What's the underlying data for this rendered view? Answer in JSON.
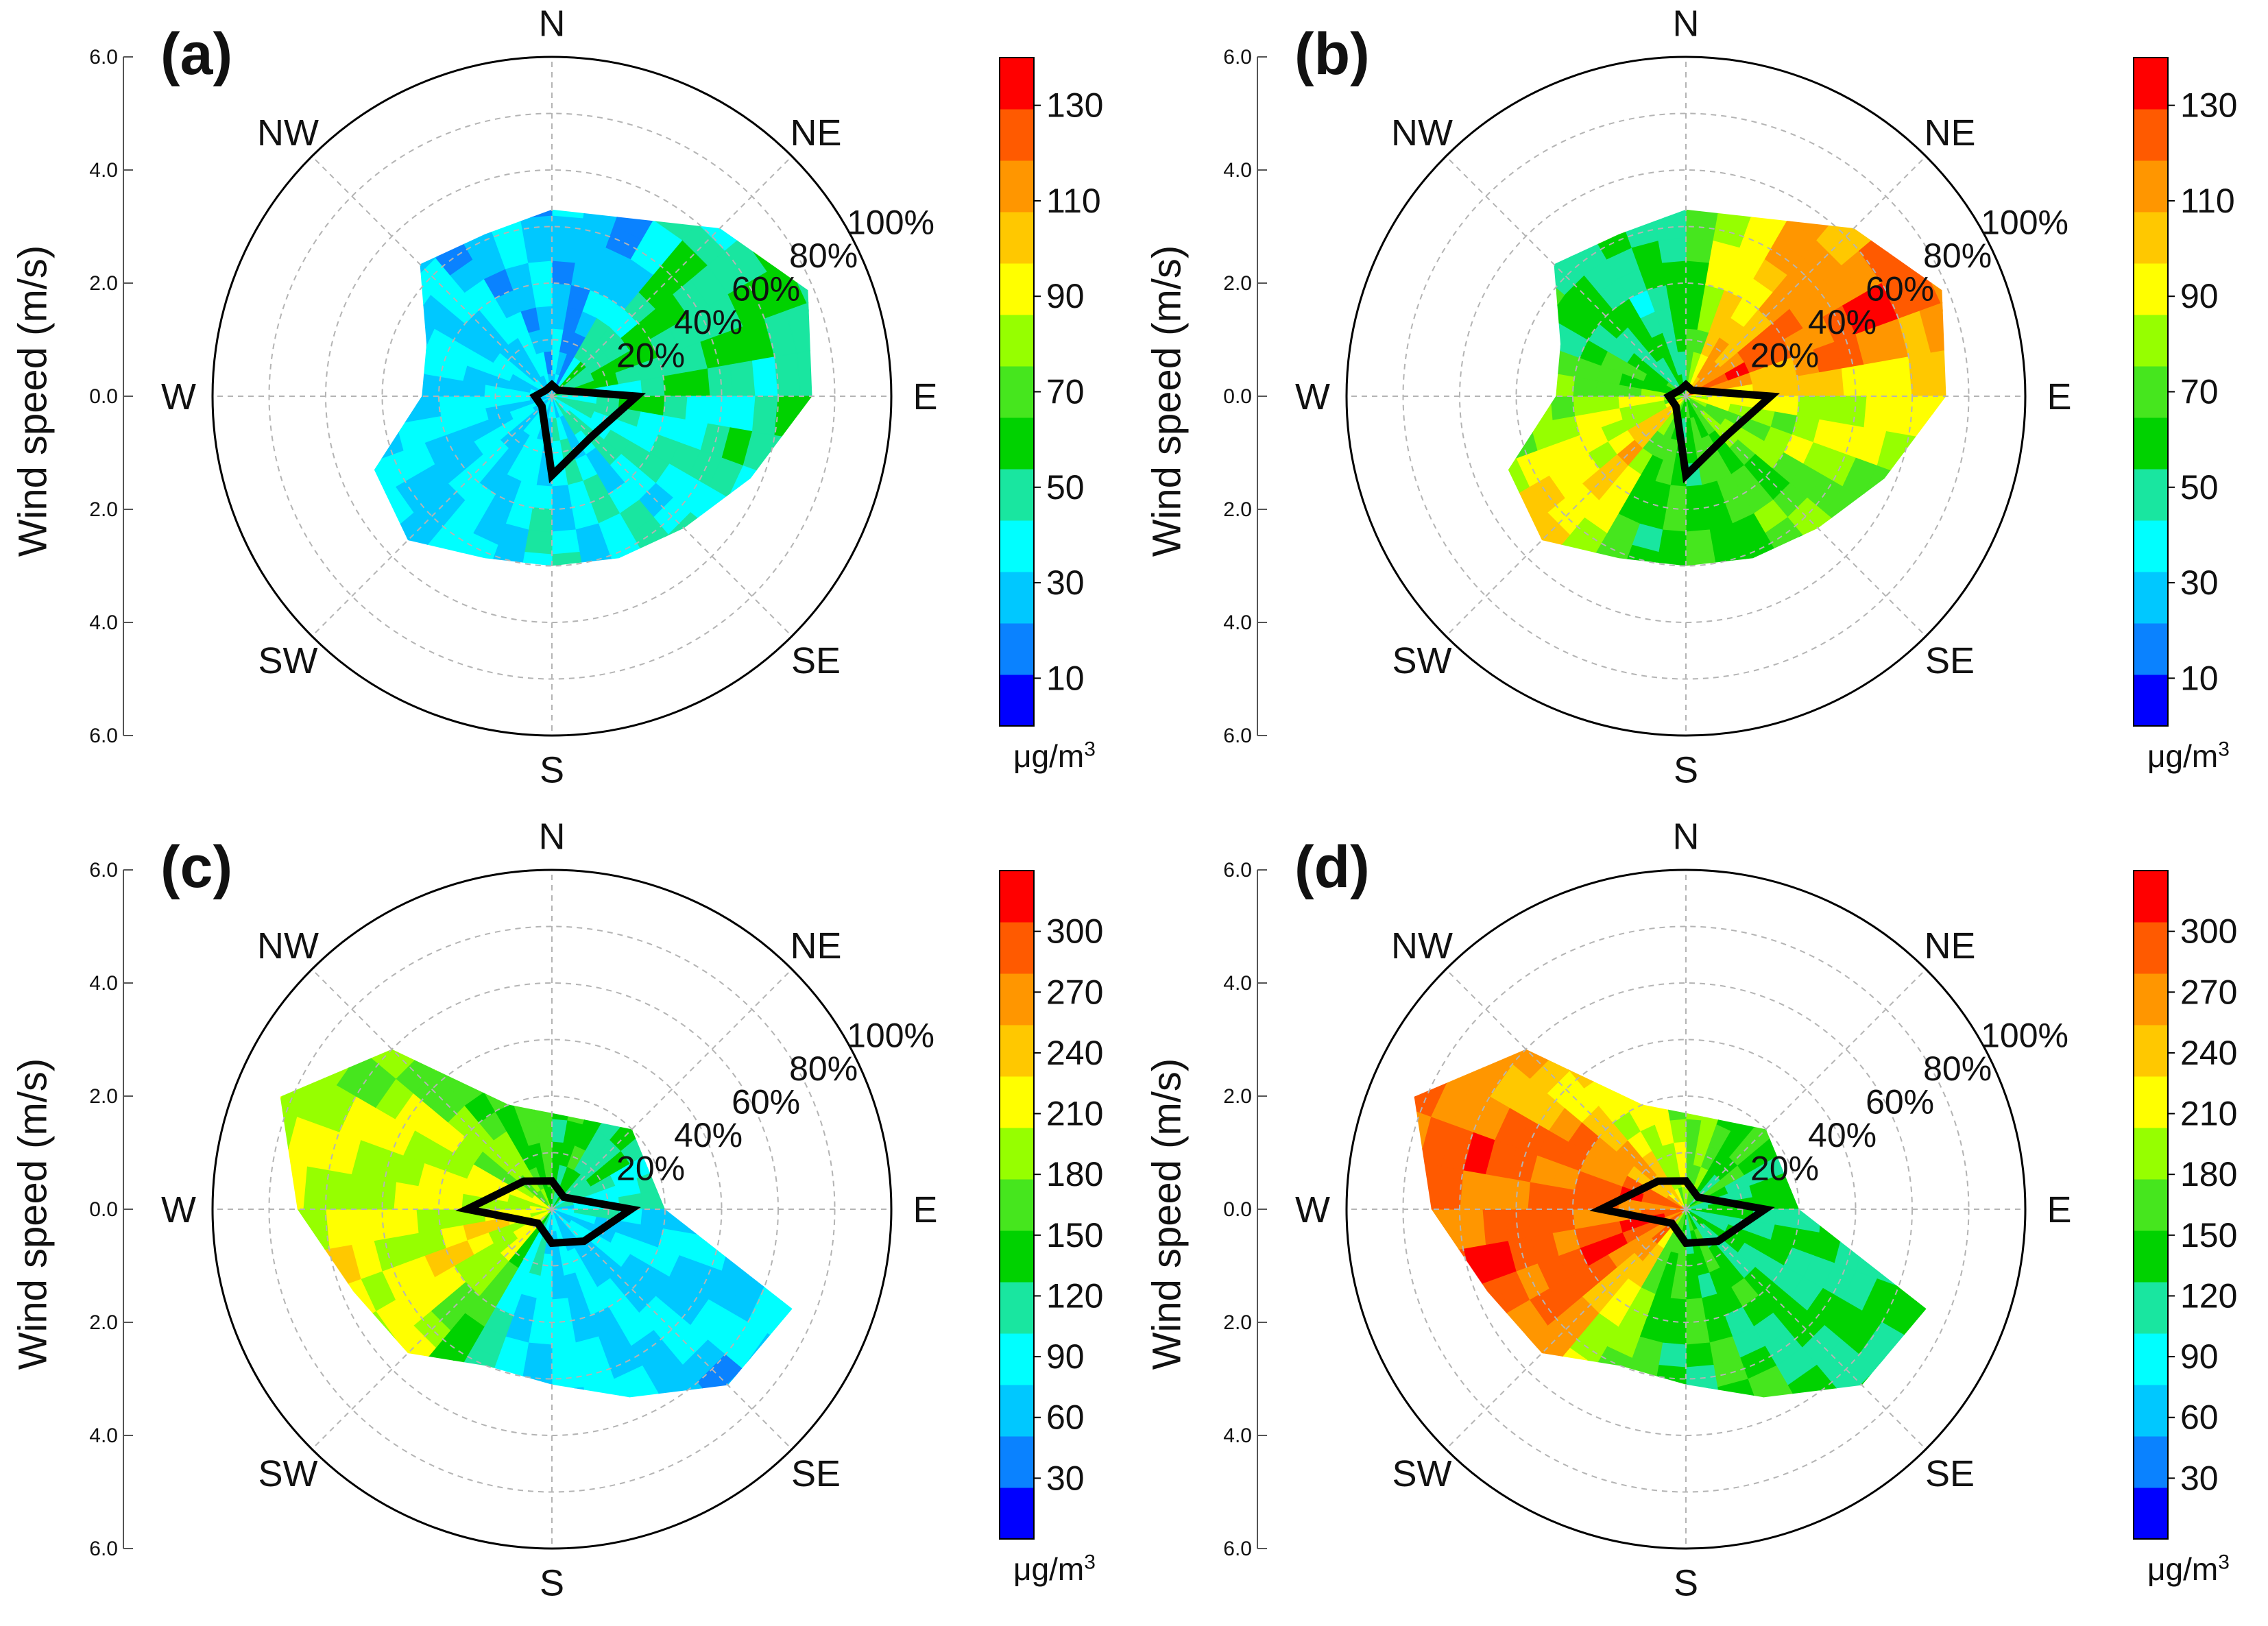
{
  "figure": {
    "panels": [
      {
        "label": "(a)",
        "ylabel": "Wind speed (m/s)",
        "unit_main": "μg/m",
        "unit_sup": "3"
      },
      {
        "label": "(b)",
        "ylabel": "Wind speed (m/s)",
        "unit_main": "μg/m",
        "unit_sup": "3"
      },
      {
        "label": "(c)",
        "ylabel": "Wind speed (m/s)",
        "unit_main": "μg/m",
        "unit_sup": "3"
      },
      {
        "label": "(d)",
        "ylabel": "Wind speed (m/s)",
        "unit_main": "μg/m",
        "unit_sup": "3"
      }
    ]
  },
  "colors": {
    "scale": [
      "#0000ff",
      "#0a82ff",
      "#00c8ff",
      "#00ffff",
      "#19e6a0",
      "#00d200",
      "#46e61e",
      "#96ff00",
      "#ffff00",
      "#ffc800",
      "#ff9600",
      "#ff5a00",
      "#ff0000"
    ],
    "ring": "#000000",
    "grid": "#b4b4b4",
    "frequency_line": "#000000"
  },
  "chart_data": [
    {
      "type": "polar-contour",
      "panel": "(a)",
      "directions": [
        "N",
        "NE",
        "E",
        "SE",
        "S",
        "SW",
        "W",
        "NW"
      ],
      "frequency_rings": [
        "20%",
        "40%",
        "60%",
        "80%",
        "100%"
      ],
      "ylabel": "Wind speed (m/s)",
      "yticks_top": [
        "6.0",
        "4.0",
        "2.0",
        "0.0"
      ],
      "yticks_bottom": [
        "2.0",
        "4.0",
        "6.0"
      ],
      "colorbar": {
        "ticks": [
          "10",
          "30",
          "50",
          "70",
          "90",
          "110",
          "130"
        ],
        "min": 0,
        "max": 140,
        "unit": "μg/m3"
      },
      "coverage_hull": [
        [
          0,
          3.3
        ],
        [
          45,
          4.2
        ],
        [
          67.5,
          4.9
        ],
        [
          90,
          4.6
        ],
        [
          112.5,
          3.8
        ],
        [
          135,
          3.3
        ],
        [
          157.5,
          3.1
        ],
        [
          180,
          3.0
        ],
        [
          202.5,
          3.1
        ],
        [
          225,
          3.6
        ],
        [
          247.5,
          3.4
        ],
        [
          270,
          2.3
        ],
        [
          292.5,
          2.4
        ],
        [
          315,
          3.3
        ],
        [
          337.5,
          3.1
        ]
      ],
      "frequency_polygon": [
        [
          0,
          0.2
        ],
        [
          45,
          0.15
        ],
        [
          90,
          1.5
        ],
        [
          135,
          1.0
        ],
        [
          180,
          1.4
        ],
        [
          225,
          0.25
        ],
        [
          270,
          0.3
        ],
        [
          315,
          0.15
        ]
      ],
      "concentration_field": [
        [
          0,
          30
        ],
        [
          22.5,
          22
        ],
        [
          45,
          50
        ],
        [
          67.5,
          55
        ],
        [
          90,
          48
        ],
        [
          112.5,
          45
        ],
        [
          135,
          40
        ],
        [
          157.5,
          38
        ],
        [
          180,
          36
        ],
        [
          202.5,
          35
        ],
        [
          225,
          33
        ],
        [
          247.5,
          32
        ],
        [
          270,
          34
        ],
        [
          292.5,
          35
        ],
        [
          315,
          30
        ],
        [
          337.5,
          28
        ]
      ]
    },
    {
      "type": "polar-contour",
      "panel": "(b)",
      "directions": [
        "N",
        "NE",
        "E",
        "SE",
        "S",
        "SW",
        "W",
        "NW"
      ],
      "frequency_rings": [
        "20%",
        "40%",
        "60%",
        "80%",
        "100%"
      ],
      "ylabel": "Wind speed (m/s)",
      "yticks_top": [
        "6.0",
        "4.0",
        "2.0",
        "0.0"
      ],
      "yticks_bottom": [
        "2.0",
        "4.0",
        "6.0"
      ],
      "colorbar": {
        "ticks": [
          "10",
          "30",
          "50",
          "70",
          "90",
          "110",
          "130"
        ],
        "min": 0,
        "max": 140,
        "unit": "μg/m3"
      },
      "coverage_hull": [
        [
          0,
          3.3
        ],
        [
          45,
          4.2
        ],
        [
          67.5,
          4.9
        ],
        [
          90,
          4.6
        ],
        [
          112.5,
          3.8
        ],
        [
          135,
          3.3
        ],
        [
          157.5,
          3.1
        ],
        [
          180,
          3.0
        ],
        [
          202.5,
          3.1
        ],
        [
          225,
          3.6
        ],
        [
          247.5,
          3.4
        ],
        [
          270,
          2.3
        ],
        [
          292.5,
          2.4
        ],
        [
          315,
          3.3
        ],
        [
          337.5,
          3.1
        ]
      ],
      "frequency_polygon": [
        [
          0,
          0.2
        ],
        [
          45,
          0.15
        ],
        [
          90,
          1.5
        ],
        [
          135,
          1.0
        ],
        [
          180,
          1.4
        ],
        [
          225,
          0.25
        ],
        [
          270,
          0.3
        ],
        [
          315,
          0.15
        ]
      ],
      "concentration_field": [
        [
          0,
          55
        ],
        [
          22.5,
          95
        ],
        [
          45,
          110
        ],
        [
          67.5,
          125
        ],
        [
          90,
          90
        ],
        [
          112.5,
          80
        ],
        [
          135,
          70
        ],
        [
          157.5,
          65
        ],
        [
          180,
          60
        ],
        [
          202.5,
          62
        ],
        [
          225,
          100
        ],
        [
          247.5,
          85
        ],
        [
          270,
          80
        ],
        [
          292.5,
          60
        ],
        [
          315,
          55
        ],
        [
          337.5,
          50
        ]
      ]
    },
    {
      "type": "polar-contour",
      "panel": "(c)",
      "directions": [
        "N",
        "NE",
        "E",
        "SE",
        "S",
        "SW",
        "W",
        "NW"
      ],
      "frequency_rings": [
        "20%",
        "40%",
        "60%",
        "80%",
        "100%"
      ],
      "ylabel": "Wind speed (m/s)",
      "yticks_top": [
        "6.0",
        "4.0",
        "2.0",
        "0.0"
      ],
      "yticks_bottom": [
        "2.0",
        "4.0",
        "6.0"
      ],
      "colorbar": {
        "ticks": [
          "30",
          "60",
          "90",
          "120",
          "150",
          "180",
          "210",
          "240",
          "270",
          "300"
        ],
        "min": 0,
        "max": 330,
        "unit": "μg/m3"
      },
      "coverage_hull": [
        [
          0,
          1.7
        ],
        [
          45,
          2.0
        ],
        [
          90,
          2.0
        ],
        [
          112.5,
          4.6
        ],
        [
          135,
          4.4
        ],
        [
          157.5,
          3.6
        ],
        [
          180,
          3.1
        ],
        [
          202.5,
          3.0
        ],
        [
          225,
          3.6
        ],
        [
          247.5,
          3.8
        ],
        [
          270,
          4.5
        ],
        [
          292.5,
          5.2
        ],
        [
          315,
          4.0
        ],
        [
          337.5,
          2.0
        ]
      ],
      "frequency_polygon": [
        [
          0,
          0.5
        ],
        [
          45,
          0.3
        ],
        [
          90,
          1.4
        ],
        [
          135,
          0.8
        ],
        [
          180,
          0.6
        ],
        [
          225,
          0.35
        ],
        [
          270,
          1.5
        ],
        [
          315,
          0.7
        ]
      ],
      "concentration_field": [
        [
          0,
          150
        ],
        [
          45,
          120
        ],
        [
          90,
          90
        ],
        [
          112.5,
          70
        ],
        [
          135,
          70
        ],
        [
          157.5,
          75
        ],
        [
          180,
          80
        ],
        [
          202.5,
          90
        ],
        [
          225,
          190
        ],
        [
          247.5,
          220
        ],
        [
          270,
          200
        ],
        [
          292.5,
          210
        ],
        [
          315,
          180
        ],
        [
          337.5,
          160
        ]
      ]
    },
    {
      "type": "polar-contour",
      "panel": "(d)",
      "directions": [
        "N",
        "NE",
        "E",
        "SE",
        "S",
        "SW",
        "W",
        "NW"
      ],
      "frequency_rings": [
        "20%",
        "40%",
        "60%",
        "80%",
        "100%"
      ],
      "ylabel": "Wind speed (m/s)",
      "yticks_top": [
        "6.0",
        "4.0",
        "2.0",
        "0.0"
      ],
      "yticks_bottom": [
        "2.0",
        "4.0",
        "6.0"
      ],
      "colorbar": {
        "ticks": [
          "30",
          "60",
          "90",
          "120",
          "150",
          "180",
          "210",
          "240",
          "270",
          "300"
        ],
        "min": 0,
        "max": 330,
        "unit": "μg/m3"
      },
      "coverage_hull": [
        [
          0,
          1.7
        ],
        [
          45,
          2.0
        ],
        [
          90,
          2.0
        ],
        [
          112.5,
          4.6
        ],
        [
          135,
          4.4
        ],
        [
          157.5,
          3.6
        ],
        [
          180,
          3.1
        ],
        [
          202.5,
          3.0
        ],
        [
          225,
          3.6
        ],
        [
          247.5,
          3.8
        ],
        [
          270,
          4.5
        ],
        [
          292.5,
          5.2
        ],
        [
          315,
          4.0
        ],
        [
          337.5,
          2.0
        ]
      ],
      "frequency_polygon": [
        [
          0,
          0.5
        ],
        [
          45,
          0.3
        ],
        [
          90,
          1.4
        ],
        [
          135,
          0.8
        ],
        [
          180,
          0.6
        ],
        [
          225,
          0.35
        ],
        [
          270,
          1.5
        ],
        [
          315,
          0.7
        ]
      ],
      "concentration_field": [
        [
          0,
          190
        ],
        [
          45,
          140
        ],
        [
          90,
          130
        ],
        [
          112.5,
          125
        ],
        [
          135,
          130
        ],
        [
          157.5,
          140
        ],
        [
          180,
          140
        ],
        [
          202.5,
          160
        ],
        [
          225,
          260
        ],
        [
          247.5,
          300
        ],
        [
          270,
          280
        ],
        [
          292.5,
          290
        ],
        [
          315,
          240
        ],
        [
          337.5,
          200
        ]
      ]
    }
  ]
}
